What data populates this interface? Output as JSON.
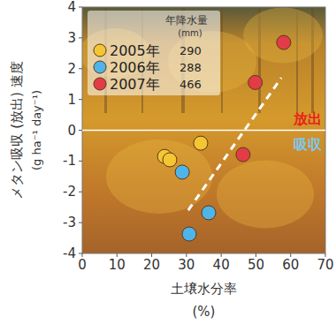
{
  "chart_data": {
    "type": "scatter",
    "y_label": [
      "メタン吸収 (放出) 速度",
      "(g ha⁻¹ day⁻¹)"
    ],
    "x_label": [
      "土壌水分率",
      "(%)"
    ],
    "xlim": [
      0,
      70
    ],
    "xticks": [
      0,
      10,
      20,
      30,
      40,
      50,
      60,
      70
    ],
    "ylim": [
      -4,
      4
    ],
    "yticks": [
      -4,
      -3,
      -2,
      -1,
      0,
      1,
      2,
      3,
      4
    ],
    "grid": false,
    "legend": "top-left",
    "legend_title": "年降水量",
    "legend_unit": "(mm)",
    "marker": "circle",
    "series": [
      {
        "name": "2005年",
        "precipitation": 290,
        "color": "#f5c633",
        "x": [
          23.7,
          25.2,
          34.1
        ],
        "values": [
          -0.85,
          -0.96,
          -0.42
        ]
      },
      {
        "name": "2006年",
        "precipitation": 288,
        "color": "#4fb4ea",
        "x": [
          28.8,
          36.4,
          30.8
        ],
        "values": [
          -1.36,
          -2.68,
          -3.37
        ]
      },
      {
        "name": "2007年",
        "precipitation": 466,
        "color": "#e23c46",
        "x": [
          58.0,
          49.8,
          46.3
        ],
        "values": [
          2.85,
          1.55,
          -0.79
        ]
      }
    ],
    "trend_line": {
      "x": [
        30.5,
        57.3
      ],
      "values": [
        -2.6,
        1.7
      ],
      "color": "#ffffff",
      "line_style": "dashed"
    },
    "annotations": [
      {
        "text": "放出",
        "color": "#e8221c"
      },
      {
        "text": "吸収",
        "color": "#7cc8f0"
      }
    ]
  }
}
